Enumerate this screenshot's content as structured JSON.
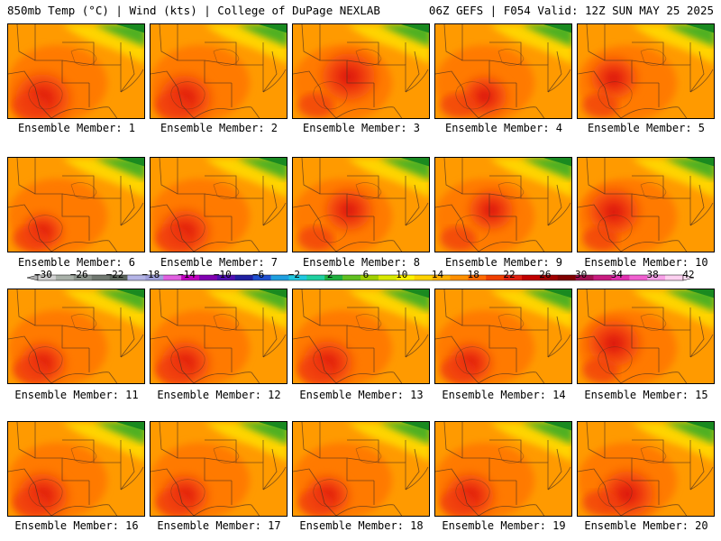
{
  "header": {
    "left": "850mb Temp (°C) | Wind (kts) | College of DuPage NEXLAB",
    "right": "06Z GEFS | F054 Valid: 12Z SUN MAY 25 2025"
  },
  "members": [
    {
      "label": "Ensemble Member: 1",
      "hot": 0.9,
      "hotspot": "southwest"
    },
    {
      "label": "Ensemble Member: 2",
      "hot": 0.8,
      "hotspot": "southwest"
    },
    {
      "label": "Ensemble Member: 3",
      "hot": 0.85,
      "hotspot": "central"
    },
    {
      "label": "Ensemble Member: 4",
      "hot": 0.55,
      "hotspot": "south-central"
    },
    {
      "label": "Ensemble Member: 5",
      "hot": 0.6,
      "hotspot": "west"
    },
    {
      "label": "Ensemble Member: 6",
      "hot": 0.45,
      "hotspot": "southwest"
    },
    {
      "label": "Ensemble Member: 7",
      "hot": 0.7,
      "hotspot": "southwest"
    },
    {
      "label": "Ensemble Member: 8",
      "hot": 0.6,
      "hotspot": "central"
    },
    {
      "label": "Ensemble Member: 9",
      "hot": 0.55,
      "hotspot": "central"
    },
    {
      "label": "Ensemble Member: 10",
      "hot": 0.75,
      "hotspot": "west"
    },
    {
      "label": "Ensemble Member: 11",
      "hot": 0.6,
      "hotspot": "southwest"
    },
    {
      "label": "Ensemble Member: 12",
      "hot": 0.7,
      "hotspot": "southwest"
    },
    {
      "label": "Ensemble Member: 13",
      "hot": 0.75,
      "hotspot": "southwest"
    },
    {
      "label": "Ensemble Member: 14",
      "hot": 0.55,
      "hotspot": "southwest"
    },
    {
      "label": "Ensemble Member: 15",
      "hot": 0.8,
      "hotspot": "west"
    },
    {
      "label": "Ensemble Member: 16",
      "hot": 0.75,
      "hotspot": "southwest"
    },
    {
      "label": "Ensemble Member: 17",
      "hot": 0.6,
      "hotspot": "southwest"
    },
    {
      "label": "Ensemble Member: 18",
      "hot": 0.55,
      "hotspot": "southwest"
    },
    {
      "label": "Ensemble Member: 19",
      "hot": 0.7,
      "hotspot": "southwest"
    },
    {
      "label": "Ensemble Member: 20",
      "hot": 0.8,
      "hotspot": "south-central"
    }
  ],
  "colorbar": {
    "labels": [
      "−30",
      "−26",
      "−22",
      "−18",
      "−14",
      "−10",
      "−6",
      "−2",
      "2",
      "6",
      "10",
      "14",
      "18",
      "22",
      "26",
      "30",
      "34",
      "38",
      "42"
    ],
    "colors": [
      "#d0d0d0",
      "#a8b0a8",
      "#8c948c",
      "#707870",
      "#5a645a",
      "#b4b4e6",
      "#a0a0dc",
      "#e060e0",
      "#c000c0",
      "#8000b0",
      "#5010b0",
      "#2020a0",
      "#2050d0",
      "#20a0e0",
      "#20c8e0",
      "#20d0a0",
      "#20b040",
      "#60c020",
      "#a0d000",
      "#d8e800",
      "#fff200",
      "#ffd200",
      "#ffb000",
      "#ff9000",
      "#ff6a00",
      "#f04000",
      "#e02010",
      "#c00000",
      "#a00000",
      "#800000",
      "#a01050",
      "#c81c80",
      "#e030b0",
      "#f060d0",
      "#f8a0e8",
      "#fcd0f0"
    ]
  },
  "palette": {
    "ocean": "#ff9a00",
    "warm": "#ff7a00",
    "hot": "#f03a10",
    "veryhot": "#d81010",
    "cool_yellow": "#ffd400",
    "green": "#4fb020",
    "darkgreen": "#1a8a20",
    "lines": "#4a3020"
  }
}
